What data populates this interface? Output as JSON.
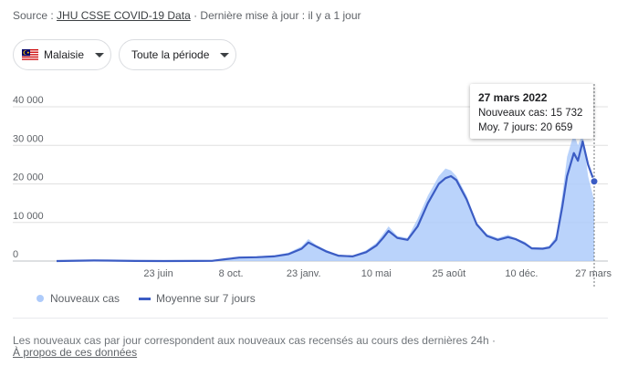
{
  "source": {
    "prefix": "Source : ",
    "link": "JHU CSSE COVID-19 Data",
    "update": " · Dernière mise à jour : il y a 1 jour"
  },
  "filters": {
    "country": "Malaisie",
    "period": "Toute la période"
  },
  "tooltip": {
    "date": "27 mars 2022",
    "new_cases": "Nouveaux cas: 15 732",
    "avg7": "Moy. 7 jours: 20 659"
  },
  "legend": {
    "new_cases": "Nouveaux cas",
    "avg7": "Moyenne sur 7 jours"
  },
  "footer": {
    "note": "Les nouveaux cas par jour correspondent aux nouveaux cas recensés au cours des dernières 24h  ·",
    "about": "À propos de ces données"
  },
  "colors": {
    "area": "#aecbfa",
    "line": "#3b5cc4",
    "grid": "#e0e0e0"
  },
  "chart_data": {
    "type": "area",
    "ylim": [
      0,
      40000
    ],
    "yticks": [
      0,
      10000,
      20000,
      30000,
      40000
    ],
    "ytick_labels": [
      "0",
      "10 000",
      "20 000",
      "30 000",
      "40 000"
    ],
    "xticks": [
      {
        "date": "2020-06-23",
        "label": "23 juin"
      },
      {
        "date": "2020-10-08",
        "label": "8 oct."
      },
      {
        "date": "2021-01-23",
        "label": "23 janv."
      },
      {
        "date": "2021-05-10",
        "label": "10 mai"
      },
      {
        "date": "2021-08-25",
        "label": "25 août"
      },
      {
        "date": "2021-12-10",
        "label": "10 déc."
      },
      {
        "date": "2022-03-27",
        "label": "27 mars"
      }
    ],
    "xlim": [
      "2020-01-25",
      "2022-03-27"
    ],
    "grid": true,
    "legend_position": "bottom-left",
    "series": [
      {
        "name": "Moyenne sur 7 jours",
        "points": [
          [
            "2020-01-25",
            0
          ],
          [
            "2020-03-20",
            150
          ],
          [
            "2020-04-10",
            120
          ],
          [
            "2020-05-20",
            30
          ],
          [
            "2020-07-01",
            10
          ],
          [
            "2020-08-15",
            15
          ],
          [
            "2020-09-10",
            50
          ],
          [
            "2020-10-01",
            500
          ],
          [
            "2020-10-20",
            900
          ],
          [
            "2020-11-15",
            1000
          ],
          [
            "2020-12-10",
            1200
          ],
          [
            "2021-01-01",
            1800
          ],
          [
            "2021-01-20",
            3200
          ],
          [
            "2021-01-30",
            4800
          ],
          [
            "2021-02-10",
            3800
          ],
          [
            "2021-02-25",
            2500
          ],
          [
            "2021-03-15",
            1400
          ],
          [
            "2021-04-05",
            1200
          ],
          [
            "2021-04-25",
            2300
          ],
          [
            "2021-05-10",
            4000
          ],
          [
            "2021-05-20",
            6000
          ],
          [
            "2021-05-28",
            7800
          ],
          [
            "2021-06-10",
            6000
          ],
          [
            "2021-06-25",
            5500
          ],
          [
            "2021-07-10",
            9000
          ],
          [
            "2021-07-25",
            15000
          ],
          [
            "2021-08-10",
            20000
          ],
          [
            "2021-08-20",
            21500
          ],
          [
            "2021-08-28",
            22000
          ],
          [
            "2021-09-05",
            21000
          ],
          [
            "2021-09-20",
            16000
          ],
          [
            "2021-10-05",
            9500
          ],
          [
            "2021-10-20",
            6500
          ],
          [
            "2021-11-05",
            5500
          ],
          [
            "2021-11-20",
            6200
          ],
          [
            "2021-12-01",
            5700
          ],
          [
            "2021-12-15",
            4500
          ],
          [
            "2021-12-25",
            3300
          ],
          [
            "2022-01-10",
            3200
          ],
          [
            "2022-01-20",
            3500
          ],
          [
            "2022-01-30",
            5500
          ],
          [
            "2022-02-08",
            14000
          ],
          [
            "2022-02-15",
            22000
          ],
          [
            "2022-02-25",
            28000
          ],
          [
            "2022-03-03",
            26000
          ],
          [
            "2022-03-10",
            31000
          ],
          [
            "2022-03-18",
            25000
          ],
          [
            "2022-03-27",
            20659
          ]
        ]
      },
      {
        "name": "Nouveaux cas",
        "points": [
          [
            "2020-01-25",
            0
          ],
          [
            "2020-03-20",
            200
          ],
          [
            "2020-04-10",
            150
          ],
          [
            "2020-05-20",
            40
          ],
          [
            "2020-07-01",
            15
          ],
          [
            "2020-08-15",
            20
          ],
          [
            "2020-09-10",
            60
          ],
          [
            "2020-10-01",
            600
          ],
          [
            "2020-10-20",
            1100
          ],
          [
            "2020-11-15",
            1200
          ],
          [
            "2020-12-10",
            1500
          ],
          [
            "2021-01-01",
            2200
          ],
          [
            "2021-01-20",
            3800
          ],
          [
            "2021-01-30",
            5700
          ],
          [
            "2021-02-10",
            4200
          ],
          [
            "2021-02-25",
            2900
          ],
          [
            "2021-03-15",
            1600
          ],
          [
            "2021-04-05",
            1400
          ],
          [
            "2021-04-25",
            2800
          ],
          [
            "2021-05-10",
            4700
          ],
          [
            "2021-05-20",
            7000
          ],
          [
            "2021-05-28",
            9000
          ],
          [
            "2021-06-10",
            6500
          ],
          [
            "2021-06-25",
            6000
          ],
          [
            "2021-07-10",
            11000
          ],
          [
            "2021-07-25",
            17000
          ],
          [
            "2021-08-10",
            22000
          ],
          [
            "2021-08-20",
            24000
          ],
          [
            "2021-08-28",
            23500
          ],
          [
            "2021-09-05",
            22000
          ],
          [
            "2021-09-20",
            17000
          ],
          [
            "2021-10-05",
            10000
          ],
          [
            "2021-10-20",
            7000
          ],
          [
            "2021-11-05",
            6000
          ],
          [
            "2021-11-20",
            6800
          ],
          [
            "2021-12-01",
            6000
          ],
          [
            "2021-12-15",
            5000
          ],
          [
            "2021-12-25",
            3600
          ],
          [
            "2022-01-10",
            3500
          ],
          [
            "2022-01-20",
            4000
          ],
          [
            "2022-01-30",
            6500
          ],
          [
            "2022-02-08",
            17000
          ],
          [
            "2022-02-15",
            27000
          ],
          [
            "2022-02-25",
            33000
          ],
          [
            "2022-03-03",
            30000
          ],
          [
            "2022-03-10",
            33000
          ],
          [
            "2022-03-18",
            22000
          ],
          [
            "2022-03-27",
            15732
          ]
        ]
      }
    ],
    "highlight": {
      "date": "2022-03-27",
      "value": 20659
    }
  }
}
